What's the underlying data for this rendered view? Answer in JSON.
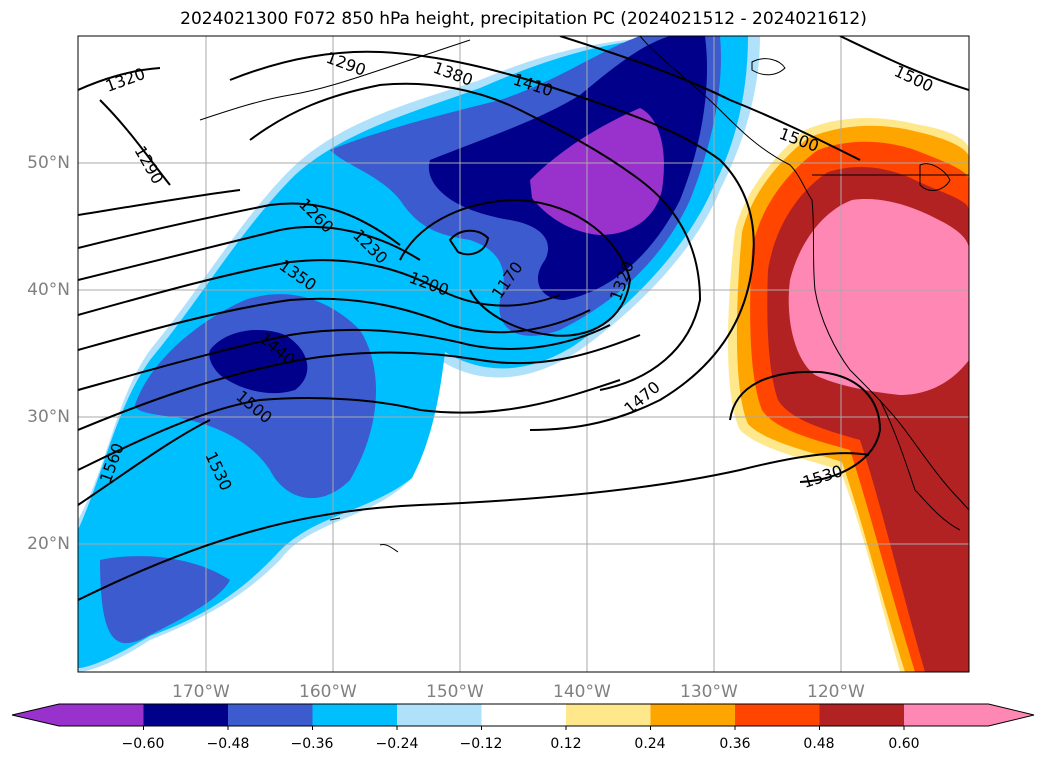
{
  "title": "2024021300 F072 850 hPa height, precipitation PC (2024021512 - 2024021612)",
  "map": {
    "lon_labels": [
      "170°W",
      "160°W",
      "150°W",
      "140°W",
      "130°W",
      "120°W"
    ],
    "lat_labels": [
      "50°N",
      "40°N",
      "30°N",
      "20°N"
    ],
    "contour_labels": [
      "1320",
      "1290",
      "1290",
      "1380",
      "1410",
      "1500",
      "1500",
      "1260",
      "1230",
      "1350",
      "1200",
      "1170",
      "1320",
      "1440",
      "1500",
      "1470",
      "1530",
      "1560",
      "1530"
    ]
  },
  "colorbar": {
    "colors": [
      "#9932cc",
      "#00008b",
      "#3b5bcf",
      "#00bfff",
      "#afe1fa",
      "#ffffff",
      "#ffe88c",
      "#ffa500",
      "#ff4500",
      "#b22222",
      "#ff87b4"
    ],
    "tick_labels": [
      "−0.60",
      "−0.48",
      "−0.36",
      "−0.24",
      "−0.12",
      "0.12",
      "0.24",
      "0.36",
      "0.48",
      "0.60"
    ]
  }
}
